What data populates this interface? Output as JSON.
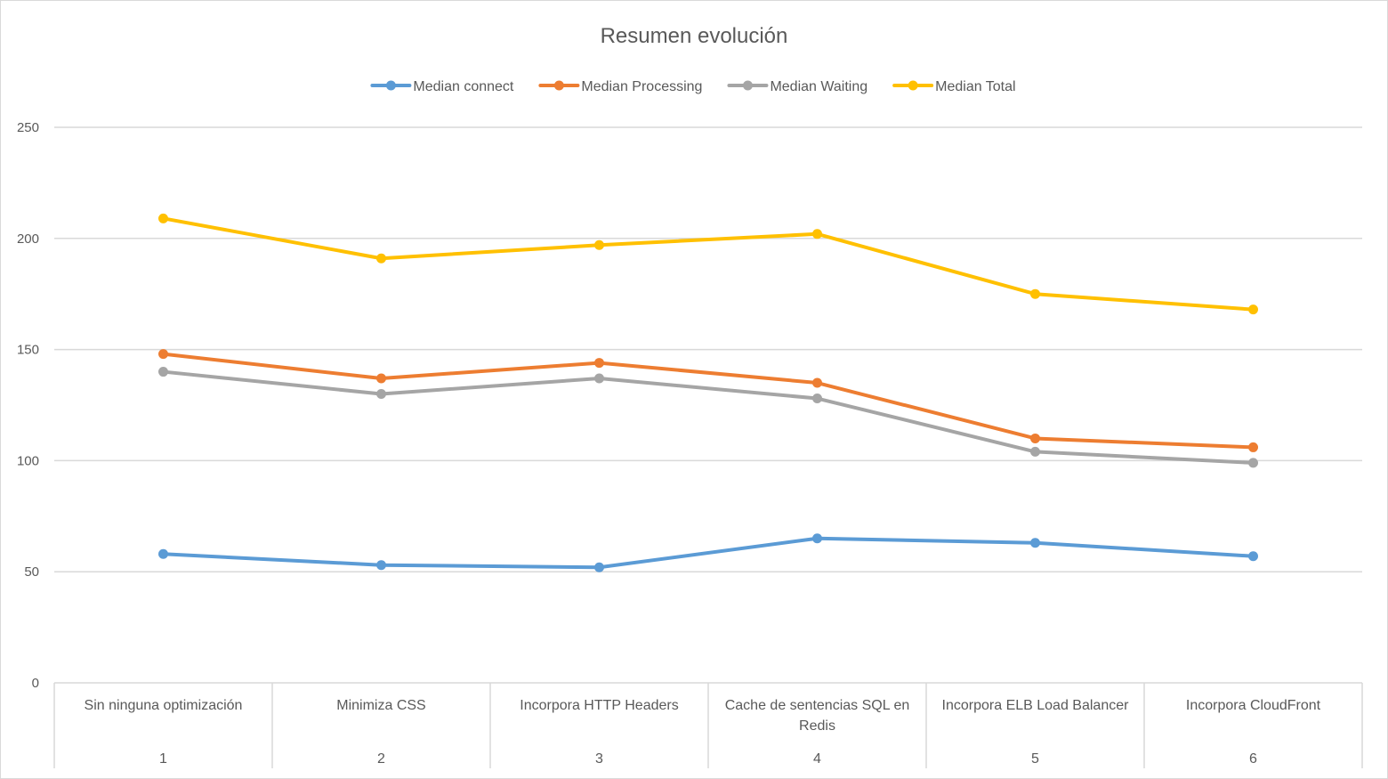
{
  "chart_data": {
    "type": "line",
    "title": "Resumen evolución",
    "categories": [
      {
        "label_lines": [
          "Sin ninguna optimización"
        ],
        "index": "1"
      },
      {
        "label_lines": [
          "Minimiza CSS"
        ],
        "index": "2"
      },
      {
        "label_lines": [
          "Incorpora HTTP Headers"
        ],
        "index": "3"
      },
      {
        "label_lines": [
          "Cache de sentencias SQL en",
          "Redis"
        ],
        "index": "4"
      },
      {
        "label_lines": [
          "Incorpora ELB Load Balancer"
        ],
        "index": "5"
      },
      {
        "label_lines": [
          "Incorpora CloudFront"
        ],
        "index": "6"
      }
    ],
    "series": [
      {
        "name": "Median connect",
        "color": "#5b9bd5",
        "values": [
          58,
          53,
          52,
          65,
          63,
          57
        ]
      },
      {
        "name": "Median Processing",
        "color": "#ed7d31",
        "values": [
          148,
          137,
          144,
          135,
          110,
          106
        ]
      },
      {
        "name": "Median Waiting",
        "color": "#a5a5a5",
        "values": [
          140,
          130,
          137,
          128,
          104,
          99
        ]
      },
      {
        "name": "Median Total",
        "color": "#ffc000",
        "values": [
          209,
          191,
          197,
          202,
          175,
          168
        ]
      }
    ],
    "ylim": [
      0,
      250
    ],
    "yticks": [
      "0",
      "50",
      "100",
      "150",
      "200",
      "250"
    ],
    "grid": true,
    "legend_position": "top",
    "xlabel": "",
    "ylabel": ""
  }
}
